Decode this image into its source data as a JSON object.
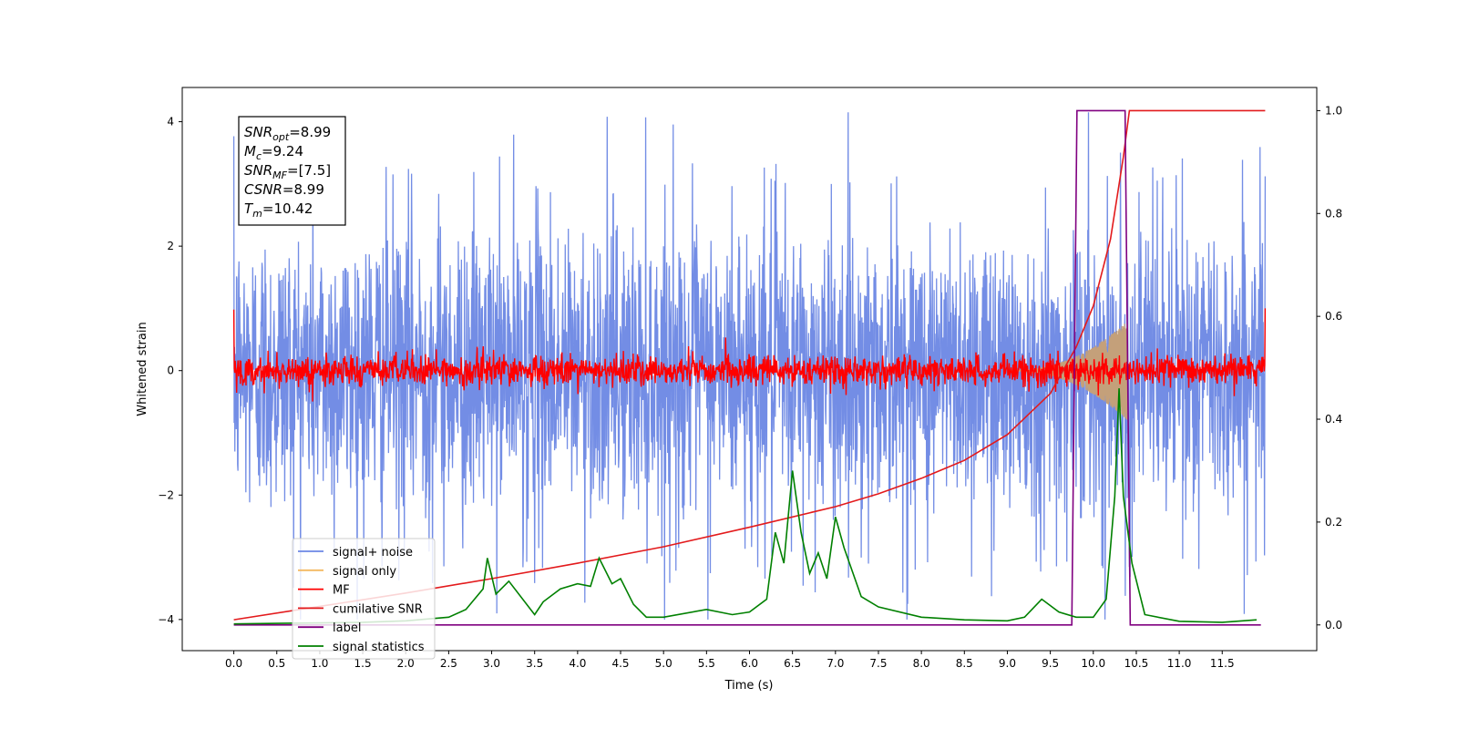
{
  "chart_data": {
    "type": "line",
    "xlabel": "Time (s)",
    "ylabel_left": "Whitened strain",
    "ylabel_right": "",
    "xlim": [
      -0.6,
      12.6
    ],
    "ylim_left": [
      -4.5,
      4.55
    ],
    "ylim_right": [
      -0.05,
      1.045
    ],
    "x_ticks": [
      "0.0",
      "0.5",
      "1.0",
      "1.5",
      "2.0",
      "2.5",
      "3.0",
      "3.5",
      "4.0",
      "4.5",
      "5.0",
      "5.5",
      "6.0",
      "6.5",
      "7.0",
      "7.5",
      "8.0",
      "8.5",
      "9.0",
      "9.5",
      "10.0",
      "10.5",
      "11.0",
      "11.5"
    ],
    "y_ticks_left": [
      "−4",
      "−2",
      "0",
      "2",
      "4"
    ],
    "y_ticks_right": [
      "0.0",
      "0.2",
      "0.4",
      "0.6",
      "0.8",
      "1.0"
    ],
    "grid": false,
    "legend_position": "bottom-left",
    "colors": {
      "signal_noise": "#6b87e4",
      "signal_only": "#f4b860",
      "signal_only_fill": "#c4a07a",
      "mf": "#ff0000",
      "cumulative_snr": "#e31a1c",
      "label": "#800080",
      "signal_statistics": "#008000"
    },
    "series": [
      {
        "name": "signal+ noise",
        "axis": "left",
        "envelope_min": -4.0,
        "envelope_max": 4.15,
        "x_range": [
          0.0,
          12.0
        ]
      },
      {
        "name": "signal only",
        "axis": "left",
        "amplitude_at_end": 0.8,
        "x_range": [
          9.0,
          10.4
        ]
      },
      {
        "name": "MF",
        "axis": "left",
        "center": 0.0,
        "amplitude": 0.3,
        "x_range": [
          0.0,
          12.0
        ]
      },
      {
        "name": "cumilative SNR",
        "axis": "right",
        "x": [
          0.0,
          1.0,
          2.0,
          3.0,
          4.0,
          5.0,
          6.0,
          7.0,
          7.5,
          8.0,
          8.5,
          9.0,
          9.5,
          9.8,
          10.0,
          10.2,
          10.35,
          10.42,
          12.0
        ],
        "y": [
          0.01,
          0.036,
          0.062,
          0.09,
          0.12,
          0.152,
          0.19,
          0.23,
          0.255,
          0.285,
          0.32,
          0.37,
          0.45,
          0.54,
          0.62,
          0.75,
          0.91,
          1.0,
          1.0
        ]
      },
      {
        "name": "label",
        "axis": "right",
        "x": [
          0.0,
          9.75,
          9.81,
          10.37,
          10.43,
          11.95
        ],
        "y": [
          0.0,
          0.0,
          1.0,
          1.0,
          0.0,
          0.0
        ]
      },
      {
        "name": "signal statistics",
        "axis": "right",
        "x": [
          0.0,
          0.5,
          1.0,
          1.5,
          2.0,
          2.5,
          2.7,
          2.9,
          2.95,
          3.05,
          3.2,
          3.5,
          3.6,
          3.8,
          4.0,
          4.15,
          4.25,
          4.4,
          4.5,
          4.65,
          4.8,
          5.0,
          5.5,
          5.8,
          6.0,
          6.2,
          6.3,
          6.4,
          6.5,
          6.6,
          6.7,
          6.8,
          6.9,
          7.0,
          7.1,
          7.3,
          7.5,
          8.0,
          8.5,
          9.0,
          9.2,
          9.4,
          9.6,
          9.8,
          10.0,
          10.15,
          10.25,
          10.3,
          10.35,
          10.45,
          10.6,
          11.0,
          11.5,
          11.9
        ],
        "y": [
          0.002,
          0.003,
          0.004,
          0.005,
          0.008,
          0.015,
          0.03,
          0.07,
          0.13,
          0.06,
          0.085,
          0.02,
          0.045,
          0.07,
          0.08,
          0.075,
          0.13,
          0.08,
          0.09,
          0.04,
          0.015,
          0.015,
          0.03,
          0.02,
          0.025,
          0.05,
          0.18,
          0.12,
          0.3,
          0.18,
          0.1,
          0.14,
          0.09,
          0.21,
          0.15,
          0.055,
          0.035,
          0.015,
          0.01,
          0.008,
          0.015,
          0.05,
          0.025,
          0.015,
          0.015,
          0.05,
          0.25,
          0.46,
          0.25,
          0.12,
          0.02,
          0.007,
          0.005,
          0.01
        ]
      }
    ],
    "annotation": [
      {
        "sym": "SNR",
        "sub": "opt",
        "rest": "=8.99"
      },
      {
        "sym": "M",
        "sub": "c",
        "rest": "=9.24"
      },
      {
        "sym": "SNR",
        "sub": "MF",
        "rest": "=[7.5]"
      },
      {
        "sym": "CSNR",
        "sub": "",
        "rest": "=8.99"
      },
      {
        "sym": "T",
        "sub": "m",
        "rest": "=10.42"
      }
    ]
  }
}
